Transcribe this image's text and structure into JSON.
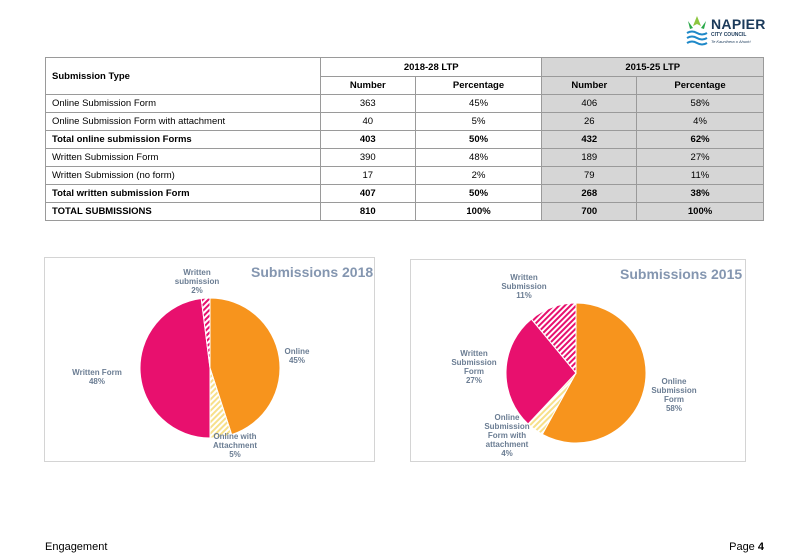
{
  "logo": {
    "name": "NAPIER",
    "subtitle": "CITY COUNCIL",
    "tagline": "Te Kaunihera o Ahuriri"
  },
  "table": {
    "type_header": "Submission Type",
    "period_headers": [
      "2018-28 LTP",
      "2015-25 LTP"
    ],
    "sub_headers": [
      "Number",
      "Percentage",
      "Number",
      "Percentage"
    ],
    "rows": [
      {
        "label": "Online Submission Form",
        "values": [
          "363",
          "45%",
          "406",
          "58%"
        ],
        "bold": false
      },
      {
        "label": "Online Submission Form with attachment",
        "values": [
          "40",
          "5%",
          "26",
          "4%"
        ],
        "bold": false
      },
      {
        "label": "Total online submission Forms",
        "values": [
          "403",
          "50%",
          "432",
          "62%"
        ],
        "bold": true
      },
      {
        "label": "Written Submission Form",
        "values": [
          "390",
          "48%",
          "189",
          "27%"
        ],
        "bold": false
      },
      {
        "label": "Written Submission (no form)",
        "values": [
          "17",
          "2%",
          "79",
          "11%"
        ],
        "bold": false
      },
      {
        "label": "Total written submission Form",
        "values": [
          "407",
          "50%",
          "268",
          "38%"
        ],
        "bold": true
      },
      {
        "label": "TOTAL SUBMISSIONS",
        "values": [
          "810",
          "100%",
          "700",
          "100%"
        ],
        "bold": true
      }
    ]
  },
  "chart_data": [
    {
      "type": "pie",
      "title": "Submissions 2018",
      "slices": [
        {
          "name": "Online",
          "value": 45,
          "label_lines": [
            "Online",
            "45%"
          ],
          "color": "#f7941d",
          "pattern": false
        },
        {
          "name": "Online with Attachment",
          "value": 5,
          "label_lines": [
            "Online with",
            "Attachment",
            "5%"
          ],
          "color": "#f7e08a",
          "pattern": true
        },
        {
          "name": "Written Form",
          "value": 48,
          "label_lines": [
            "Written Form",
            "48%"
          ],
          "color": "#e8106e",
          "pattern": false
        },
        {
          "name": "Written submission",
          "value": 2,
          "label_lines": [
            "Written",
            "submission",
            "2%"
          ],
          "color": "#e8106e",
          "pattern": true
        }
      ]
    },
    {
      "type": "pie",
      "title": "Submissions 2015",
      "slices": [
        {
          "name": "Online Submission Form",
          "value": 58,
          "label_lines": [
            "Online",
            "Submission",
            "Form",
            "58%"
          ],
          "color": "#f7941d",
          "pattern": false
        },
        {
          "name": "Online Submission Form with attachment",
          "value": 4,
          "label_lines": [
            "Online",
            "Submission",
            "Form with",
            "attachment",
            "4%"
          ],
          "color": "#f7e08a",
          "pattern": true
        },
        {
          "name": "Written Submission Form",
          "value": 27,
          "label_lines": [
            "Written",
            "Submission",
            "Form",
            "27%"
          ],
          "color": "#e8106e",
          "pattern": false
        },
        {
          "name": "Written Submission",
          "value": 11,
          "label_lines": [
            "Written",
            "Submission",
            "11%"
          ],
          "color": "#e8106e",
          "pattern": true
        }
      ]
    }
  ],
  "footer": {
    "left": "Engagement",
    "page_label": "Page",
    "page_number": "4"
  }
}
